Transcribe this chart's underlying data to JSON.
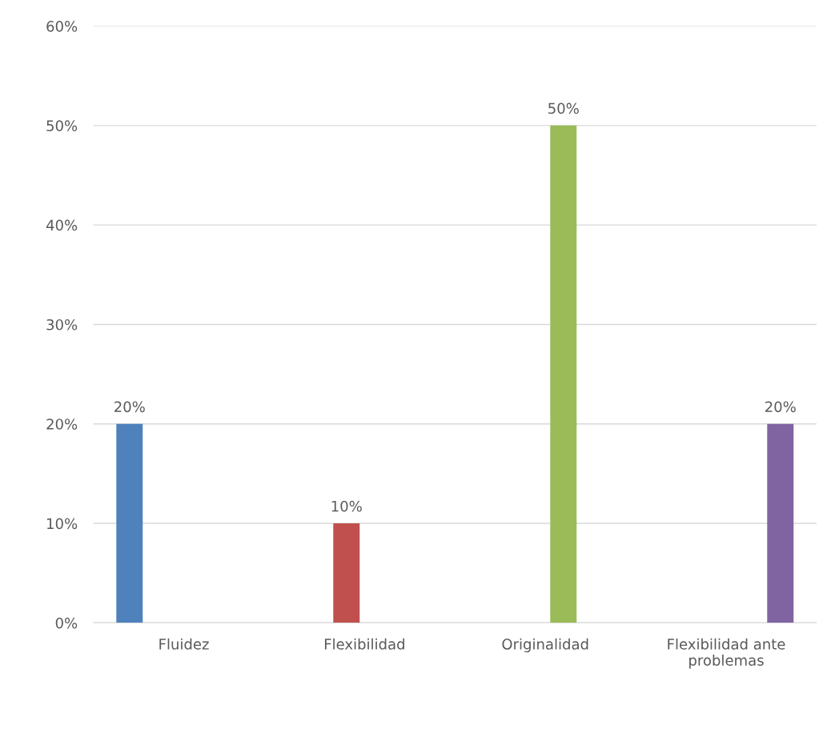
{
  "chart_data": {
    "type": "bar",
    "categories": [
      "Fluidez",
      "Flexibilidad",
      "Originalidad",
      "Flexibilidad ante\nproblemas"
    ],
    "series": [
      {
        "color": "#4f81bd",
        "values": [
          20,
          null,
          null,
          null
        ],
        "value_labels": [
          "20%",
          null,
          null,
          null
        ]
      },
      {
        "color": "#c0504d",
        "values": [
          null,
          10,
          null,
          null
        ],
        "value_labels": [
          null,
          "10%",
          null,
          null
        ]
      },
      {
        "color": "#9bbb59",
        "values": [
          null,
          null,
          50,
          null
        ],
        "value_labels": [
          null,
          null,
          "50%",
          null
        ]
      },
      {
        "color": "#8064a2",
        "values": [
          null,
          null,
          null,
          20
        ],
        "value_labels": [
          null,
          null,
          null,
          "20%"
        ]
      }
    ],
    "ylim": [
      0,
      60
    ],
    "yticks": [
      {
        "value": 0,
        "label": "0%"
      },
      {
        "value": 10,
        "label": "10%"
      },
      {
        "value": 20,
        "label": "20%"
      },
      {
        "value": 30,
        "label": "30%"
      },
      {
        "value": 40,
        "label": "40%"
      },
      {
        "value": 50,
        "label": "50%"
      },
      {
        "value": 60,
        "label": "60%"
      }
    ],
    "grid": "y"
  }
}
